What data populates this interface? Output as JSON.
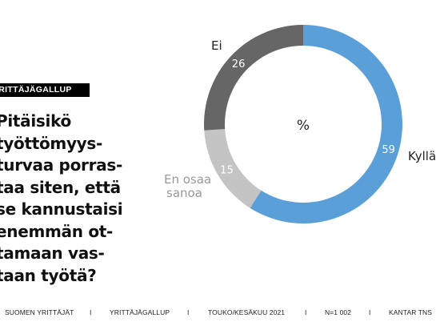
{
  "badge": "YRITTÄJÄGALLUP",
  "question_lines": [
    "Pitäisikö",
    "työttömyys-",
    "turvaa porras-",
    "taa siten, että",
    "se kannustaisi",
    "enemmän ot-",
    "tamaan vas-",
    "taan työtä?"
  ],
  "colors": {
    "kylla": "#5b9fd9",
    "ei": "#666666",
    "en_osaa": "#c4c4c4"
  },
  "chart_data": {
    "type": "pie",
    "donut": true,
    "title": "",
    "center_label": "%",
    "slices": [
      {
        "label": "Kyllä",
        "value": 59
      },
      {
        "label": "En osaa sanoa",
        "value": 15
      },
      {
        "label": "Ei",
        "value": 26
      }
    ]
  },
  "footer": {
    "items": [
      "SUOMEN YRITTÄJÄT",
      "YRITTÄJÄGALLUP",
      "TOUKO/KESÄKUU 2021",
      "N=1 002",
      "KANTAR TNS"
    ],
    "separator": "I"
  }
}
